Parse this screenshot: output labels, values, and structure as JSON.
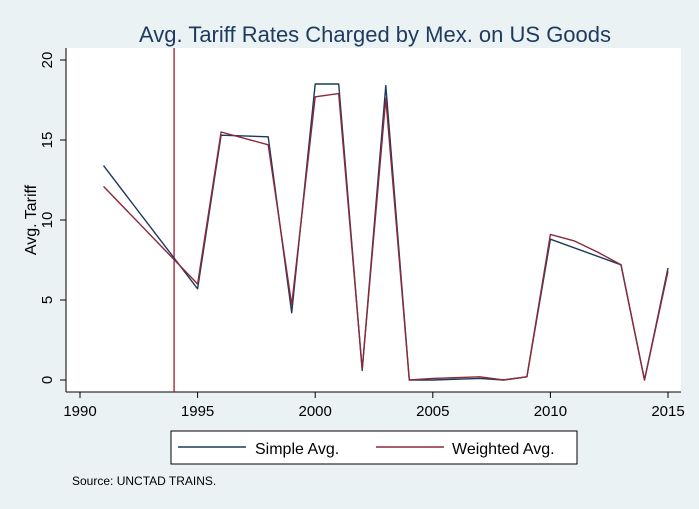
{
  "chart_data": {
    "type": "line",
    "title": "Avg. Tariff Rates Charged by Mex. on US Goods",
    "xlabel": "",
    "ylabel": "Avg. Tariff",
    "xlim": [
      1990,
      2015
    ],
    "ylim": [
      0,
      20
    ],
    "x_ticks": [
      "1990",
      "1995",
      "2000",
      "2005",
      "2010",
      "2015"
    ],
    "y_ticks": [
      "0",
      "5",
      "10",
      "15",
      "20"
    ],
    "grid": false,
    "legend_position": "bottom",
    "reference_line": {
      "x": 1994,
      "color": "#a3192e"
    },
    "series": [
      {
        "name": "Simple Avg.",
        "color": "#1b3a5c",
        "x": [
          1991,
          1995,
          1996,
          1998,
          1999,
          2000,
          2001,
          2002,
          2003,
          2004,
          2005,
          2007,
          2008,
          2009,
          2010,
          2013,
          2014,
          2015
        ],
        "y": [
          13.4,
          5.7,
          15.3,
          15.2,
          4.2,
          18.5,
          18.5,
          0.6,
          18.4,
          0.0,
          0.0,
          0.1,
          0.0,
          0.2,
          8.8,
          7.2,
          0.0,
          7.0
        ]
      },
      {
        "name": "Weighted Avg.",
        "color": "#8b2a3a",
        "x": [
          1991,
          1995,
          1996,
          1998,
          1999,
          2000,
          2001,
          2002,
          2003,
          2004,
          2005,
          2007,
          2008,
          2009,
          2010,
          2011,
          2012,
          2013,
          2014,
          2015
        ],
        "y": [
          12.1,
          6.0,
          15.5,
          14.7,
          4.7,
          17.7,
          17.9,
          0.7,
          17.6,
          0.0,
          0.1,
          0.2,
          0.0,
          0.2,
          9.1,
          8.7,
          8.0,
          7.2,
          0.0,
          6.8
        ]
      }
    ],
    "source_note": "Source: UNCTAD TRAINS."
  }
}
